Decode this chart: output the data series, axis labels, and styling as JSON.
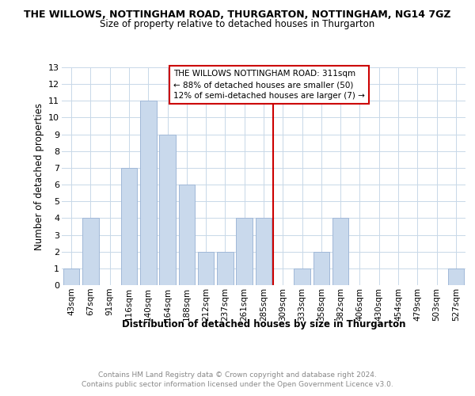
{
  "title": "THE WILLOWS, NOTTINGHAM ROAD, THURGARTON, NOTTINGHAM, NG14 7GZ",
  "subtitle": "Size of property relative to detached houses in Thurgarton",
  "xlabel": "Distribution of detached houses by size in Thurgarton",
  "ylabel": "Number of detached properties",
  "categories": [
    "43sqm",
    "67sqm",
    "91sqm",
    "116sqm",
    "140sqm",
    "164sqm",
    "188sqm",
    "212sqm",
    "237sqm",
    "261sqm",
    "285sqm",
    "309sqm",
    "333sqm",
    "358sqm",
    "382sqm",
    "406sqm",
    "430sqm",
    "454sqm",
    "479sqm",
    "503sqm",
    "527sqm"
  ],
  "values": [
    1,
    4,
    0,
    7,
    11,
    9,
    6,
    2,
    2,
    4,
    4,
    0,
    1,
    2,
    4,
    0,
    0,
    0,
    0,
    0,
    1
  ],
  "bar_color": "#c9d9ec",
  "bar_edge_color": "#a0b8d8",
  "reference_line_color": "#cc0000",
  "annotation_title": "THE WILLOWS NOTTINGHAM ROAD: 311sqm",
  "annotation_line1": "← 88% of detached houses are smaller (50)",
  "annotation_line2": "12% of semi-detached houses are larger (7) →",
  "ylim": [
    0,
    13
  ],
  "yticks": [
    0,
    1,
    2,
    3,
    4,
    5,
    6,
    7,
    8,
    9,
    10,
    11,
    12,
    13
  ],
  "footer1": "Contains HM Land Registry data © Crown copyright and database right 2024.",
  "footer2": "Contains public sector information licensed under the Open Government Licence v3.0.",
  "background_color": "#ffffff",
  "grid_color": "#c8d8e8"
}
